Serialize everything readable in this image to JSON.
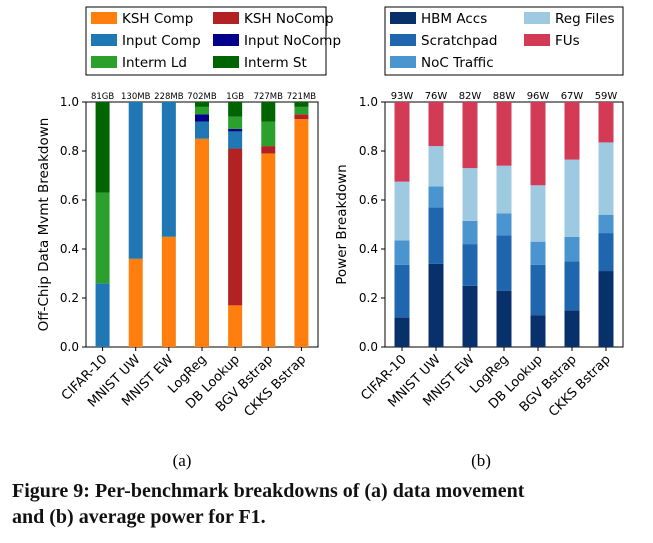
{
  "figure": {
    "caption_line1": "Figure 9: Per-benchmark breakdowns of (a) data movement",
    "caption_line2": "and (b) average power for F1.",
    "sublabels": [
      "(a)",
      "(b)"
    ]
  },
  "chart_data": [
    {
      "type": "bar",
      "stacked": true,
      "title": "",
      "xlabel": "",
      "ylabel": "Off-Chip Data Mvmt Breakdown",
      "ylim": [
        0,
        1.0
      ],
      "yticks": [
        "0.0",
        "0.2",
        "0.4",
        "0.6",
        "0.8",
        "1.0"
      ],
      "categories": [
        "CIFAR-10",
        "MNIST UW",
        "MNIST EW",
        "LogReg",
        "DB Lookup",
        "BGV Bstrap",
        "CKKS Bstrap"
      ],
      "bar_top_labels": [
        "81GB",
        "130MB",
        "228MB",
        "702MB",
        "1GB",
        "727MB",
        "721MB"
      ],
      "legend_position": "top",
      "series": [
        {
          "name": "KSH Comp",
          "color": "#ff7f0e",
          "values": [
            0.0,
            0.36,
            0.45,
            0.85,
            0.17,
            0.79,
            0.93
          ]
        },
        {
          "name": "KSH NoComp",
          "color": "#b22222",
          "values": [
            0.0,
            0.0,
            0.0,
            0.0,
            0.64,
            0.03,
            0.02
          ]
        },
        {
          "name": "Input Comp",
          "color": "#1f77b4",
          "values": [
            0.26,
            0.64,
            0.55,
            0.07,
            0.07,
            0.0,
            0.0
          ]
        },
        {
          "name": "Input NoComp",
          "color": "#00008b",
          "values": [
            0.0,
            0.0,
            0.0,
            0.03,
            0.01,
            0.0,
            0.0
          ]
        },
        {
          "name": "Interm Ld",
          "color": "#2ca02c",
          "values": [
            0.37,
            0.0,
            0.0,
            0.03,
            0.05,
            0.1,
            0.03
          ]
        },
        {
          "name": "Interm St",
          "color": "#006400",
          "values": [
            0.37,
            0.0,
            0.0,
            0.02,
            0.06,
            0.08,
            0.02
          ]
        }
      ]
    },
    {
      "type": "bar",
      "stacked": true,
      "title": "",
      "xlabel": "",
      "ylabel": "Power Breakdown",
      "ylim": [
        0,
        1.0
      ],
      "yticks": [
        "0.0",
        "0.2",
        "0.4",
        "0.6",
        "0.8",
        "1.0"
      ],
      "categories": [
        "CIFAR-10",
        "MNIST UW",
        "MNIST EW",
        "LogReg",
        "DB Lookup",
        "BGV Bstrap",
        "CKKS Bstrap"
      ],
      "bar_top_labels": [
        "93W",
        "76W",
        "82W",
        "88W",
        "96W",
        "67W",
        "59W"
      ],
      "legend_position": "top",
      "series": [
        {
          "name": "HBM Accs",
          "color": "#08306b",
          "values": [
            0.12,
            0.34,
            0.25,
            0.23,
            0.13,
            0.15,
            0.31
          ]
        },
        {
          "name": "Scratchpad",
          "color": "#1f66ae",
          "values": [
            0.215,
            0.23,
            0.17,
            0.225,
            0.205,
            0.2,
            0.155
          ]
        },
        {
          "name": "NoC Traffic",
          "color": "#4a95d0",
          "values": [
            0.1,
            0.085,
            0.095,
            0.09,
            0.095,
            0.1,
            0.075
          ]
        },
        {
          "name": "Reg Files",
          "color": "#9ecae1",
          "values": [
            0.24,
            0.165,
            0.215,
            0.195,
            0.23,
            0.315,
            0.295
          ]
        },
        {
          "name": "FUs",
          "color": "#d33a55",
          "values": [
            0.325,
            0.18,
            0.27,
            0.26,
            0.34,
            0.235,
            0.165
          ]
        }
      ]
    }
  ]
}
